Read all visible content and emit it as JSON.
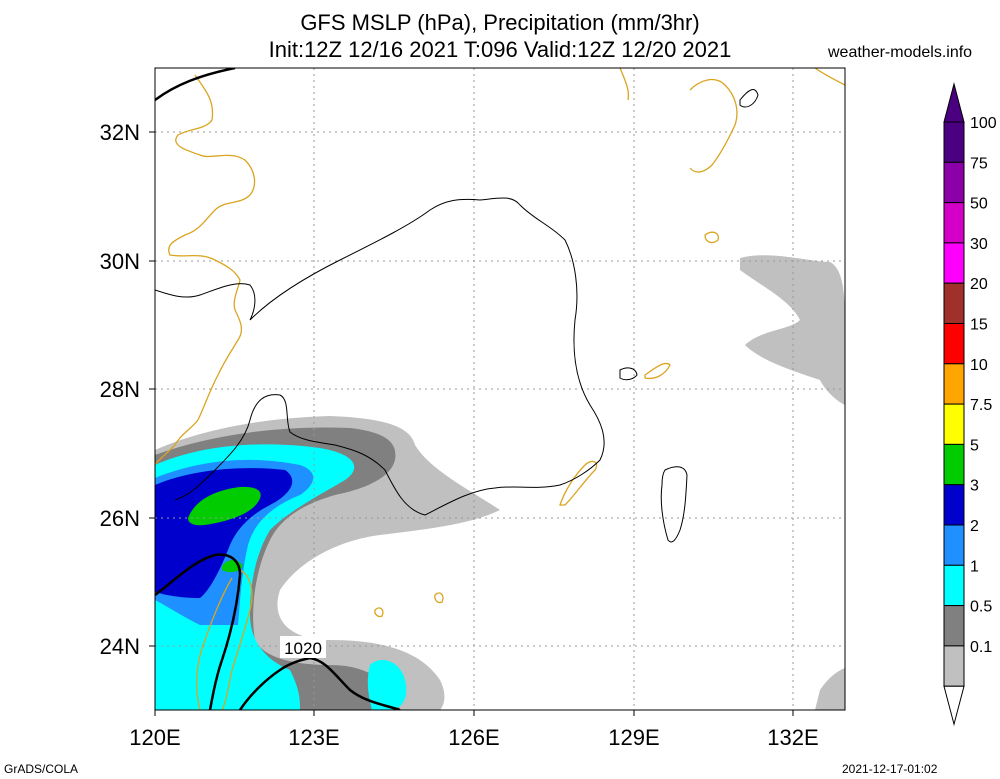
{
  "header": {
    "title_line1": "GFS MSLP (hPa), Precipitation (mm/3hr)",
    "title_line2": "Init:12Z 12/16 2021 T:096 Valid:12Z 12/20 2021",
    "site": "weather-models.info"
  },
  "map": {
    "lon_range": [
      120,
      133
    ],
    "lat_range": [
      23,
      33
    ],
    "lon_ticks": [
      "120E",
      "123E",
      "126E",
      "129E",
      "132E"
    ],
    "lat_ticks": [
      "24N",
      "26N",
      "28N",
      "30N",
      "32N"
    ],
    "isobar_label": "1020"
  },
  "legend": {
    "levels": [
      {
        "label": "100",
        "color": "#4b0082"
      },
      {
        "label": "75",
        "color": "#8b00a8"
      },
      {
        "label": "50",
        "color": "#d400c8"
      },
      {
        "label": "30",
        "color": "#ff00ff"
      },
      {
        "label": "20",
        "color": "#a0302a"
      },
      {
        "label": "15",
        "color": "#ff0000"
      },
      {
        "label": "10",
        "color": "#ffa500"
      },
      {
        "label": "7.5",
        "color": "#ffff00"
      },
      {
        "label": "5",
        "color": "#00cc00"
      },
      {
        "label": "3",
        "color": "#0000cc"
      },
      {
        "label": "2",
        "color": "#1e90ff"
      },
      {
        "label": "1",
        "color": "#00ffff"
      },
      {
        "label": "0.5",
        "color": "#808080"
      },
      {
        "label": "0.1",
        "color": "#c0c0c0"
      }
    ],
    "bottom_color": "#ffffff"
  },
  "footer": {
    "left": "GrADS/COLA",
    "right": "2021-12-17-01:02"
  }
}
